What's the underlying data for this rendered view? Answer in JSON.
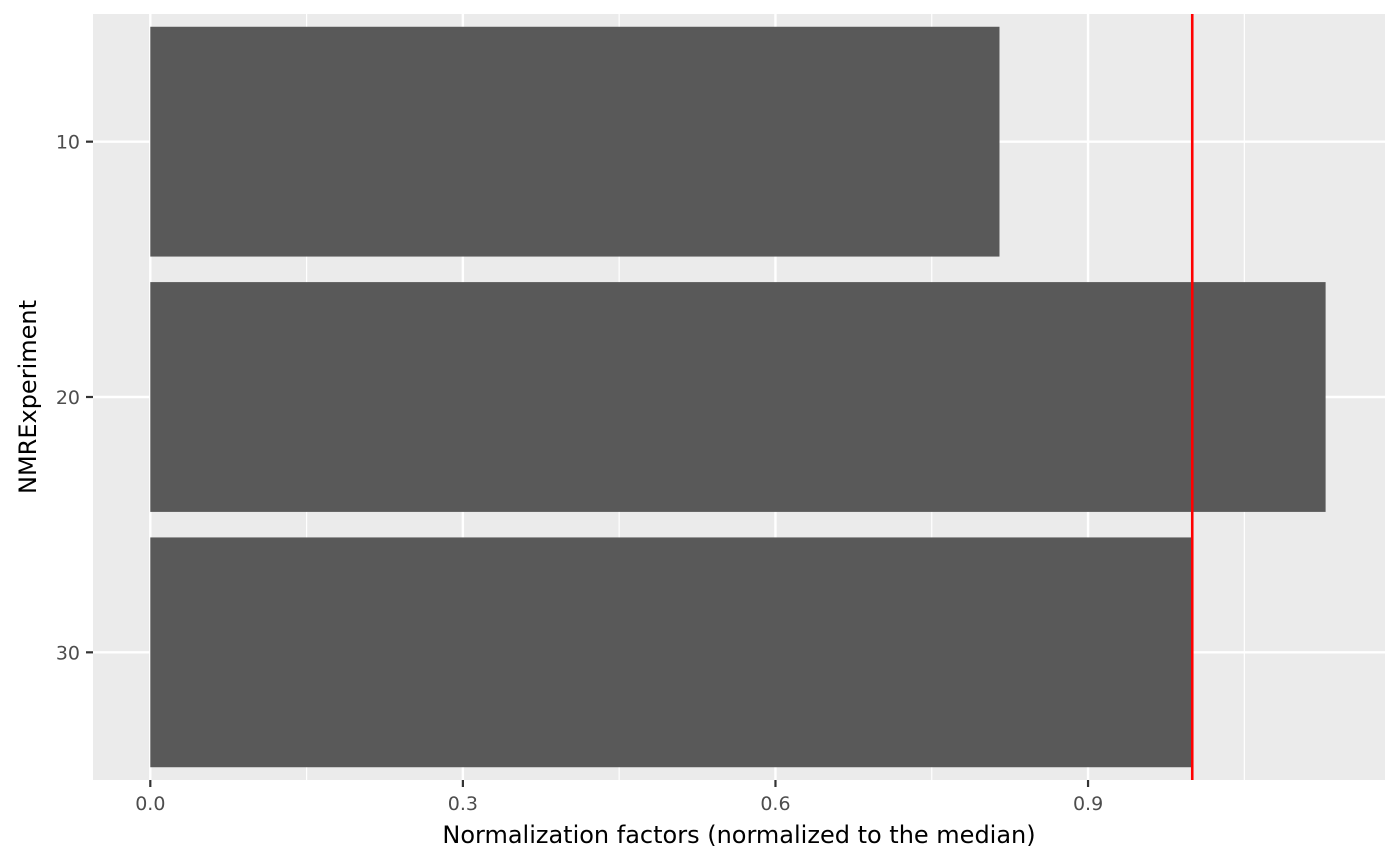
{
  "chart_data": {
    "type": "bar",
    "orientation": "horizontal",
    "title": "",
    "xlabel": "Normalization factors (normalized to the median)",
    "ylabel": "NMRExperiment",
    "categories": [
      "10",
      "20",
      "30"
    ],
    "values": [
      0.815,
      1.128,
      1.0
    ],
    "xlim": [
      -0.055,
      1.185
    ],
    "xticks": [
      0.0,
      0.3,
      0.6,
      0.9
    ],
    "xtick_labels": [
      "0.0",
      "0.3",
      "0.6",
      "0.9"
    ],
    "reference_line": {
      "x": 1.0,
      "color": "#ff0000"
    },
    "bar_color": "#595959",
    "panel_background": "#ebebeb",
    "grid": true,
    "legend": "none"
  }
}
